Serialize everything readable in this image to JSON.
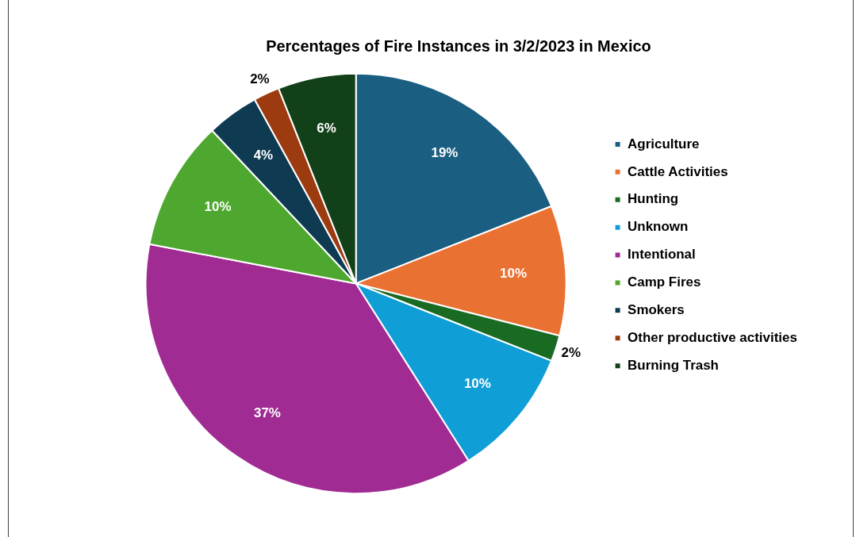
{
  "chart_data": {
    "type": "pie",
    "title": "Percentages of Fire Instances in 3/2/2023 in Mexico",
    "categories": [
      "Agriculture",
      "Cattle Activities",
      "Hunting",
      "Unknown",
      "Intentional",
      "Camp Fires",
      "Smokers",
      "Other productive activities",
      "Burning Trash"
    ],
    "values": [
      19,
      10,
      2,
      10,
      37,
      10,
      4,
      2,
      6
    ],
    "value_labels": [
      "19%",
      "10%",
      "2%",
      "10%",
      "37%",
      "10%",
      "4%",
      "2%",
      "6%"
    ],
    "colors": [
      "#1a5e82",
      "#e97132",
      "#196b24",
      "#0f9ed5",
      "#a02b93",
      "#4ea72e",
      "#0e3a52",
      "#9c3a10",
      "#124018"
    ],
    "legend": "right"
  }
}
